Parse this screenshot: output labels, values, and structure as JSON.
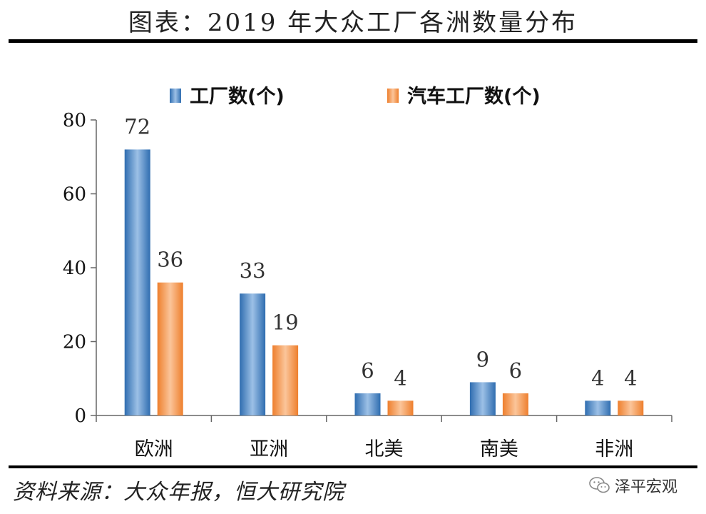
{
  "header": {
    "title": "图表：2019 年大众工厂各洲数量分布"
  },
  "footer": {
    "source": "资料来源：大众年报，恒大研究院",
    "watermark": "泽平宏观"
  },
  "colors": {
    "series1": "#4a86c5",
    "series2": "#f29b55"
  },
  "chart_data": {
    "type": "bar",
    "title": "图表：2019 年大众工厂各洲数量分布",
    "xlabel": "",
    "ylabel": "",
    "categories": [
      "欧洲",
      "亚洲",
      "北美",
      "南美",
      "非洲"
    ],
    "series": [
      {
        "name": "工厂数(个)",
        "values": [
          72,
          33,
          6,
          9,
          4
        ]
      },
      {
        "name": "汽车工厂数(个)",
        "values": [
          36,
          19,
          4,
          6,
          4
        ]
      }
    ],
    "ylim": [
      0,
      80
    ],
    "yticks": [
      0,
      20,
      40,
      60,
      80
    ],
    "grid": false,
    "legend": "top-center",
    "data_labels": true
  }
}
